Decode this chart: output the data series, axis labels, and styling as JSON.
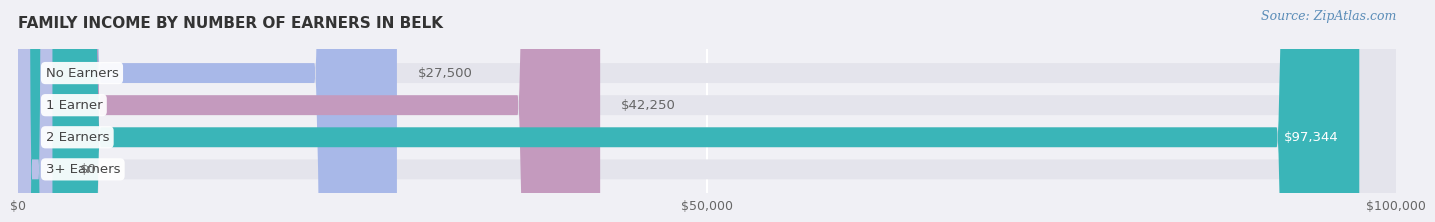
{
  "title": "FAMILY INCOME BY NUMBER OF EARNERS IN BELK",
  "source": "Source: ZipAtlas.com",
  "categories": [
    "No Earners",
    "1 Earner",
    "2 Earners",
    "3+ Earners"
  ],
  "values": [
    27500,
    42250,
    97344,
    0
  ],
  "bar_colors": [
    "#a8b8e8",
    "#c49abe",
    "#3ab5b8",
    "#b8c0e8"
  ],
  "value_labels": [
    "$27,500",
    "$42,250",
    "$97,344",
    "$0"
  ],
  "xlim": [
    0,
    100000
  ],
  "xticks": [
    0,
    50000,
    100000
  ],
  "xticklabels": [
    "$0",
    "$50,000",
    "$100,000"
  ],
  "background_color": "#f0f0f5",
  "bar_bg_color": "#e4e4ec",
  "title_fontsize": 11,
  "bar_height": 0.62,
  "label_fontsize": 9.5,
  "value_fontsize": 9.5,
  "source_fontsize": 9
}
